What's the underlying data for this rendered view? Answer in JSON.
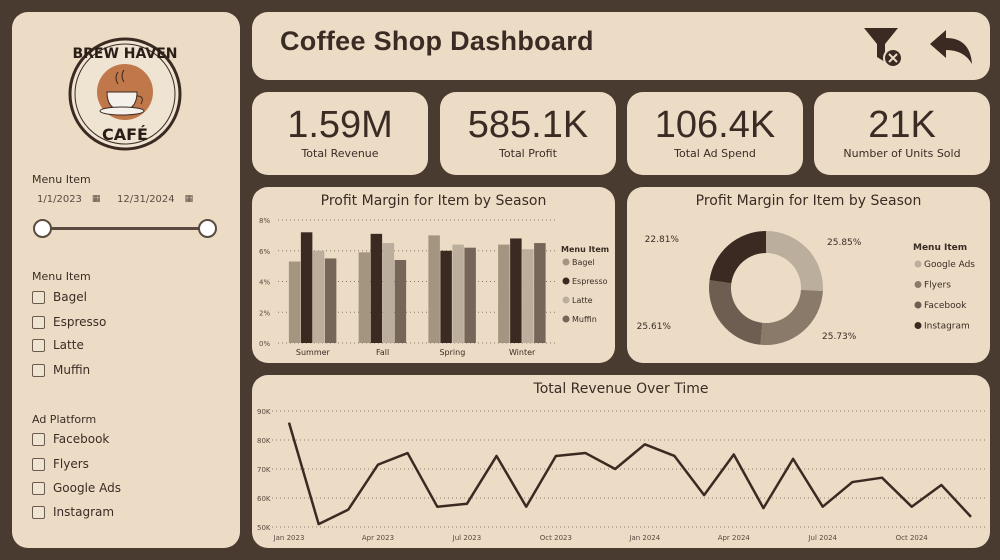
{
  "logo": {
    "line1": "BREW HAVEN",
    "line2": "CAFÉ"
  },
  "sidebar": {
    "date_label": "Menu Item",
    "date_start": "1/1/2023",
    "date_end": "12/31/2024",
    "menu_label": "Menu Item",
    "menu_items": [
      "Bagel",
      "Espresso",
      "Latte",
      "Muffin"
    ],
    "ad_label": "Ad Platform",
    "ad_items": [
      "Facebook",
      "Flyers",
      "Google Ads",
      "Instagram"
    ]
  },
  "header": {
    "title": "Coffee Shop Dashboard"
  },
  "kpis": [
    {
      "value": "1.59M",
      "label": "Total Revenue"
    },
    {
      "value": "585.1K",
      "label": "Total Profit"
    },
    {
      "value": "106.4K",
      "label": "Total Ad Spend"
    },
    {
      "value": "21K",
      "label": "Number of Units Sold"
    }
  ],
  "colors": {
    "bg": "#4a3b31",
    "card": "#ecdcc6",
    "dark": "#3b2a22",
    "bagel": "#a39580",
    "latte": "#bcae9c",
    "muffin": "#76665a",
    "google": "#bcae9c",
    "flyers": "#8a7a6a",
    "facebook": "#6e5e52",
    "instagram": "#3b2a22"
  },
  "chart_data": [
    {
      "type": "bar",
      "title": "Profit Margin for Item by Season",
      "categories": [
        "Summer",
        "Fall",
        "Spring",
        "Winter"
      ],
      "legend_title": "Menu Item",
      "ylim": [
        0,
        8
      ],
      "yticks": [
        "0%",
        "2%",
        "4%",
        "6%",
        "8%"
      ],
      "series": [
        {
          "name": "Bagel",
          "values": [
            5.3,
            5.9,
            7.0,
            6.4
          ]
        },
        {
          "name": "Espresso",
          "values": [
            7.2,
            7.1,
            6.0,
            6.8
          ]
        },
        {
          "name": "Latte",
          "values": [
            6.0,
            6.5,
            6.4,
            6.1
          ]
        },
        {
          "name": "Muffin",
          "values": [
            5.5,
            5.4,
            6.2,
            6.5
          ]
        }
      ]
    },
    {
      "type": "pie",
      "title": "Profit Margin for Item by Season",
      "legend_title": "Menu Item",
      "slices": [
        {
          "name": "Google Ads",
          "value": 25.85,
          "label": "25.85%"
        },
        {
          "name": "Flyers",
          "value": 25.73,
          "label": "25.73%"
        },
        {
          "name": "Facebook",
          "value": 25.61,
          "label": "25.61%"
        },
        {
          "name": "Instagram",
          "value": 22.81,
          "label": "22.81%"
        }
      ]
    },
    {
      "type": "line",
      "title": "Total Revenue Over Time",
      "ylim": [
        50,
        90
      ],
      "yticks": [
        "50K",
        "60K",
        "70K",
        "80K",
        "90K"
      ],
      "xticks": [
        "Jan 2023",
        "Apr 2023",
        "Jul 2023",
        "Oct 2023",
        "Jan 2024",
        "Apr 2024",
        "Jul 2024",
        "Oct 2024"
      ],
      "values": [
        86,
        51,
        56,
        71.5,
        75.5,
        57,
        58,
        74.5,
        57,
        74.5,
        75.5,
        70,
        78.5,
        74.5,
        61,
        75,
        56.5,
        73.5,
        57,
        65.5,
        67,
        57,
        64.5,
        53.5
      ]
    }
  ]
}
